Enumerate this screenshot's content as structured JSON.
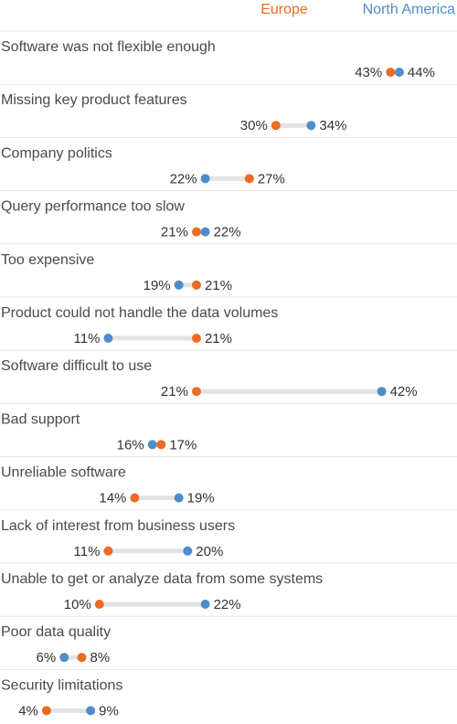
{
  "chart_data": {
    "type": "dumbbell",
    "title": "",
    "xlabel": "",
    "ylabel": "",
    "legend_position": "top-right",
    "series": [
      {
        "name": "Europe",
        "color": "#ec6b24"
      },
      {
        "name": "North America",
        "color": "#4e8ccb"
      }
    ],
    "categories": [
      "Software was not flexible enough",
      "Missing key product features",
      "Company politics",
      "Query performance too slow",
      "Too expensive",
      "Product could not handle the data volumes",
      "Software difficult to use",
      "Bad support",
      "Unreliable software",
      "Lack of interest from business users",
      "Unable to get or analyze data from some systems",
      "Poor data quality",
      "Security limitations"
    ],
    "europe": [
      43,
      30,
      27,
      21,
      21,
      21,
      21,
      17,
      14,
      11,
      10,
      8,
      4
    ],
    "north_america": [
      44,
      34,
      22,
      22,
      19,
      11,
      42,
      16,
      19,
      20,
      22,
      6,
      9
    ],
    "unit": "%",
    "grid": false
  }
}
